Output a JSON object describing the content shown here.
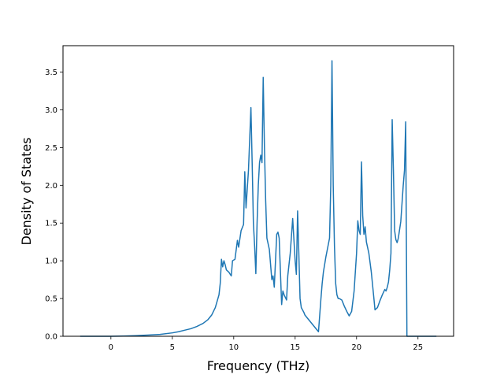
{
  "chart_data": {
    "type": "line",
    "title": "",
    "xlabel": "Frequency (THz)",
    "ylabel": "Density of States",
    "xlim": [
      -3.9,
      27.9
    ],
    "ylim": [
      0.0,
      3.85
    ],
    "grid": false,
    "line_color": "#1f77b4",
    "x_ticks": [
      0,
      5,
      10,
      15,
      20,
      25
    ],
    "y_ticks": [
      0.0,
      0.5,
      1.0,
      1.5,
      2.0,
      2.5,
      3.0,
      3.5
    ],
    "x_tick_labels": [
      "0",
      "5",
      "10",
      "15",
      "20",
      "25"
    ],
    "y_tick_labels": [
      "0.0",
      "0.5",
      "1.0",
      "1.5",
      "2.0",
      "2.5",
      "3.0",
      "3.5"
    ],
    "series": [
      {
        "x": [
          -2.5,
          -1.0,
          0.0,
          1.0,
          2.0,
          3.0,
          4.0,
          5.0,
          5.5,
          6.0,
          6.5,
          7.0,
          7.5,
          7.9,
          8.2,
          8.5,
          8.8,
          8.9,
          9.0,
          9.1,
          9.2,
          9.3,
          9.4,
          9.6,
          9.8,
          9.9,
          10.1,
          10.3,
          10.4,
          10.6,
          10.8,
          10.9,
          11.0,
          11.2,
          11.4,
          11.5,
          11.6,
          11.7,
          11.8,
          11.9,
          12.0,
          12.1,
          12.2,
          12.3,
          12.4,
          12.5,
          12.6,
          12.7,
          12.9,
          13.1,
          13.2,
          13.3,
          13.4,
          13.5,
          13.6,
          13.7,
          13.9,
          14.0,
          14.1,
          14.3,
          14.4,
          14.6,
          14.8,
          15.0,
          15.1,
          15.2,
          15.3,
          15.4,
          15.5,
          15.7,
          15.8,
          16.0,
          16.3,
          16.6,
          16.9,
          17.1,
          17.2,
          17.3,
          17.5,
          17.8,
          17.9,
          18.0,
          18.1,
          18.2,
          18.3,
          18.4,
          18.5,
          18.6,
          18.8,
          19.0,
          19.2,
          19.4,
          19.6,
          19.8,
          20.0,
          20.1,
          20.2,
          20.3,
          20.4,
          20.5,
          20.6,
          20.7,
          20.8,
          21.0,
          21.2,
          21.4,
          21.5,
          21.7,
          21.9,
          22.1,
          22.3,
          22.4,
          22.5,
          22.6,
          22.7,
          22.8,
          22.9,
          23.0,
          23.1,
          23.2,
          23.3,
          23.4,
          23.6,
          23.8,
          23.9,
          24.0,
          24.1,
          24.3,
          24.5,
          24.8,
          25.5,
          26.5
        ],
        "y": [
          0.0,
          0.0,
          0.0,
          0.003,
          0.008,
          0.015,
          0.025,
          0.045,
          0.06,
          0.08,
          0.1,
          0.13,
          0.17,
          0.22,
          0.28,
          0.38,
          0.55,
          0.7,
          1.02,
          0.92,
          1.0,
          0.95,
          0.88,
          0.85,
          0.8,
          1.0,
          1.02,
          1.27,
          1.18,
          1.4,
          1.48,
          2.18,
          1.7,
          2.2,
          3.03,
          2.3,
          1.5,
          1.2,
          0.83,
          1.5,
          2.0,
          2.3,
          2.4,
          2.3,
          3.43,
          2.5,
          1.8,
          1.3,
          1.15,
          0.75,
          0.8,
          0.65,
          1.0,
          1.35,
          1.38,
          1.3,
          0.42,
          0.6,
          0.55,
          0.48,
          0.8,
          1.1,
          1.56,
          1.0,
          0.82,
          1.66,
          1.1,
          0.5,
          0.38,
          0.32,
          0.28,
          0.24,
          0.18,
          0.12,
          0.06,
          0.5,
          0.7,
          0.85,
          1.05,
          1.3,
          2.0,
          3.65,
          2.0,
          1.2,
          0.7,
          0.55,
          0.5,
          0.5,
          0.48,
          0.4,
          0.33,
          0.27,
          0.33,
          0.6,
          1.1,
          1.53,
          1.4,
          1.35,
          2.31,
          1.6,
          1.35,
          1.45,
          1.25,
          1.1,
          0.85,
          0.52,
          0.35,
          0.38,
          0.47,
          0.55,
          0.62,
          0.6,
          0.65,
          0.72,
          0.88,
          1.1,
          2.87,
          2.2,
          1.4,
          1.28,
          1.24,
          1.3,
          1.52,
          2.0,
          2.2,
          2.84,
          0.0,
          0.0,
          0.0,
          0.0,
          0.0,
          0.0
        ]
      }
    ]
  }
}
